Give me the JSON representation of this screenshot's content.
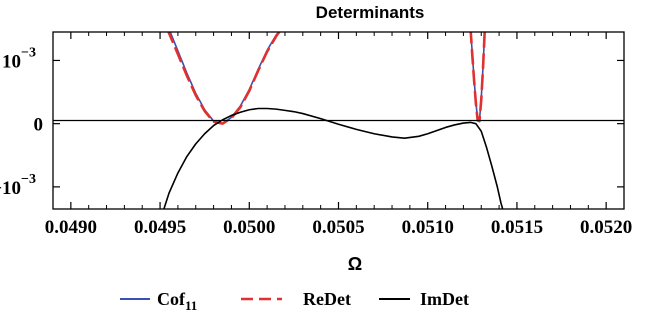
{
  "chart_data": {
    "type": "line",
    "title": "Determinants",
    "xlabel": "Ω",
    "ylabel": "",
    "xlim": [
      0.0489,
      0.0521
    ],
    "ylim": [
      -1.35,
      1.45
    ],
    "x_ticks": [
      {
        "value": 0.049,
        "label": "0.0490"
      },
      {
        "value": 0.0495,
        "label": "0.0495"
      },
      {
        "value": 0.05,
        "label": "0.0500"
      },
      {
        "value": 0.0505,
        "label": "0.0505"
      },
      {
        "value": 0.051,
        "label": "0.0510"
      },
      {
        "value": 0.0515,
        "label": "0.0515"
      },
      {
        "value": 0.052,
        "label": "0.0520"
      }
    ],
    "y_ticks": [
      {
        "value": 1,
        "base": "10",
        "exp": "-3"
      },
      {
        "value": 0,
        "base": "0",
        "exp": ""
      },
      {
        "value": -1,
        "base": "-10",
        "exp": "-3"
      }
    ],
    "y_scale": "symmetric-log (±10^-3)",
    "grid": false,
    "legend_position": "bottom",
    "series": [
      {
        "name": "Cof",
        "name_sub": "11",
        "color": "#3a4fb4",
        "dash": "solid",
        "x": [
          0.04955,
          0.0496,
          0.04965,
          0.0497,
          0.04975,
          0.0498,
          0.04985,
          0.0499,
          0.04995,
          0.05,
          0.05005,
          0.0501,
          0.05015,
          0.05018,
          null,
          0.05124,
          0.05125,
          0.05126,
          0.05127,
          0.05128,
          0.05129,
          0.0513,
          0.05131,
          0.05132
        ],
        "y": [
          1.5,
          1.15,
          0.8,
          0.48,
          0.22,
          0.04,
          0.0,
          0.1,
          0.28,
          0.54,
          0.86,
          1.16,
          1.4,
          1.5,
          null,
          1.5,
          1.1,
          0.7,
          0.34,
          0.06,
          0.05,
          0.4,
          0.9,
          1.5
        ]
      },
      {
        "name": "ReDet",
        "color": "#e03030",
        "dash": "dashed",
        "x": [
          0.04954,
          0.0496,
          0.04965,
          0.0497,
          0.04975,
          0.0498,
          0.04985,
          0.0499,
          0.04995,
          0.05,
          0.05005,
          0.0501,
          0.05015,
          0.05018,
          null,
          0.05124,
          0.05125,
          0.05126,
          0.05127,
          0.05128,
          0.05129,
          0.0513,
          0.05131,
          0.05132
        ],
        "y": [
          1.5,
          1.1,
          0.76,
          0.45,
          0.2,
          0.03,
          0.0,
          0.09,
          0.26,
          0.52,
          0.84,
          1.14,
          1.38,
          1.5,
          null,
          1.5,
          1.08,
          0.68,
          0.32,
          0.05,
          0.04,
          0.38,
          0.88,
          1.5
        ]
      },
      {
        "name": "ImDet",
        "color": "#000000",
        "dash": "solid",
        "x": [
          0.04951,
          0.04955,
          0.0496,
          0.04965,
          0.0497,
          0.04975,
          0.0498,
          0.04985,
          0.0499,
          0.04995,
          0.05,
          0.05005,
          0.0501,
          0.05015,
          0.0502,
          0.05025,
          0.0503,
          0.0504,
          0.0505,
          0.0506,
          0.0507,
          0.0508,
          0.05087,
          0.05095,
          0.051,
          0.05105,
          0.0511,
          0.05115,
          0.0512,
          0.05124,
          0.05127,
          0.0513,
          0.05133,
          0.05136,
          0.05139,
          0.05141,
          0.05143
        ],
        "y": [
          -1.45,
          -1.1,
          -0.78,
          -0.52,
          -0.32,
          -0.16,
          -0.03,
          0.06,
          0.13,
          0.18,
          0.22,
          0.24,
          0.24,
          0.23,
          0.21,
          0.19,
          0.16,
          0.08,
          -0.01,
          -0.09,
          -0.16,
          -0.21,
          -0.23,
          -0.2,
          -0.16,
          -0.11,
          -0.06,
          -0.02,
          0.01,
          0.02,
          0.0,
          -0.12,
          -0.38,
          -0.68,
          -1.0,
          -1.25,
          -1.45
        ]
      }
    ]
  }
}
